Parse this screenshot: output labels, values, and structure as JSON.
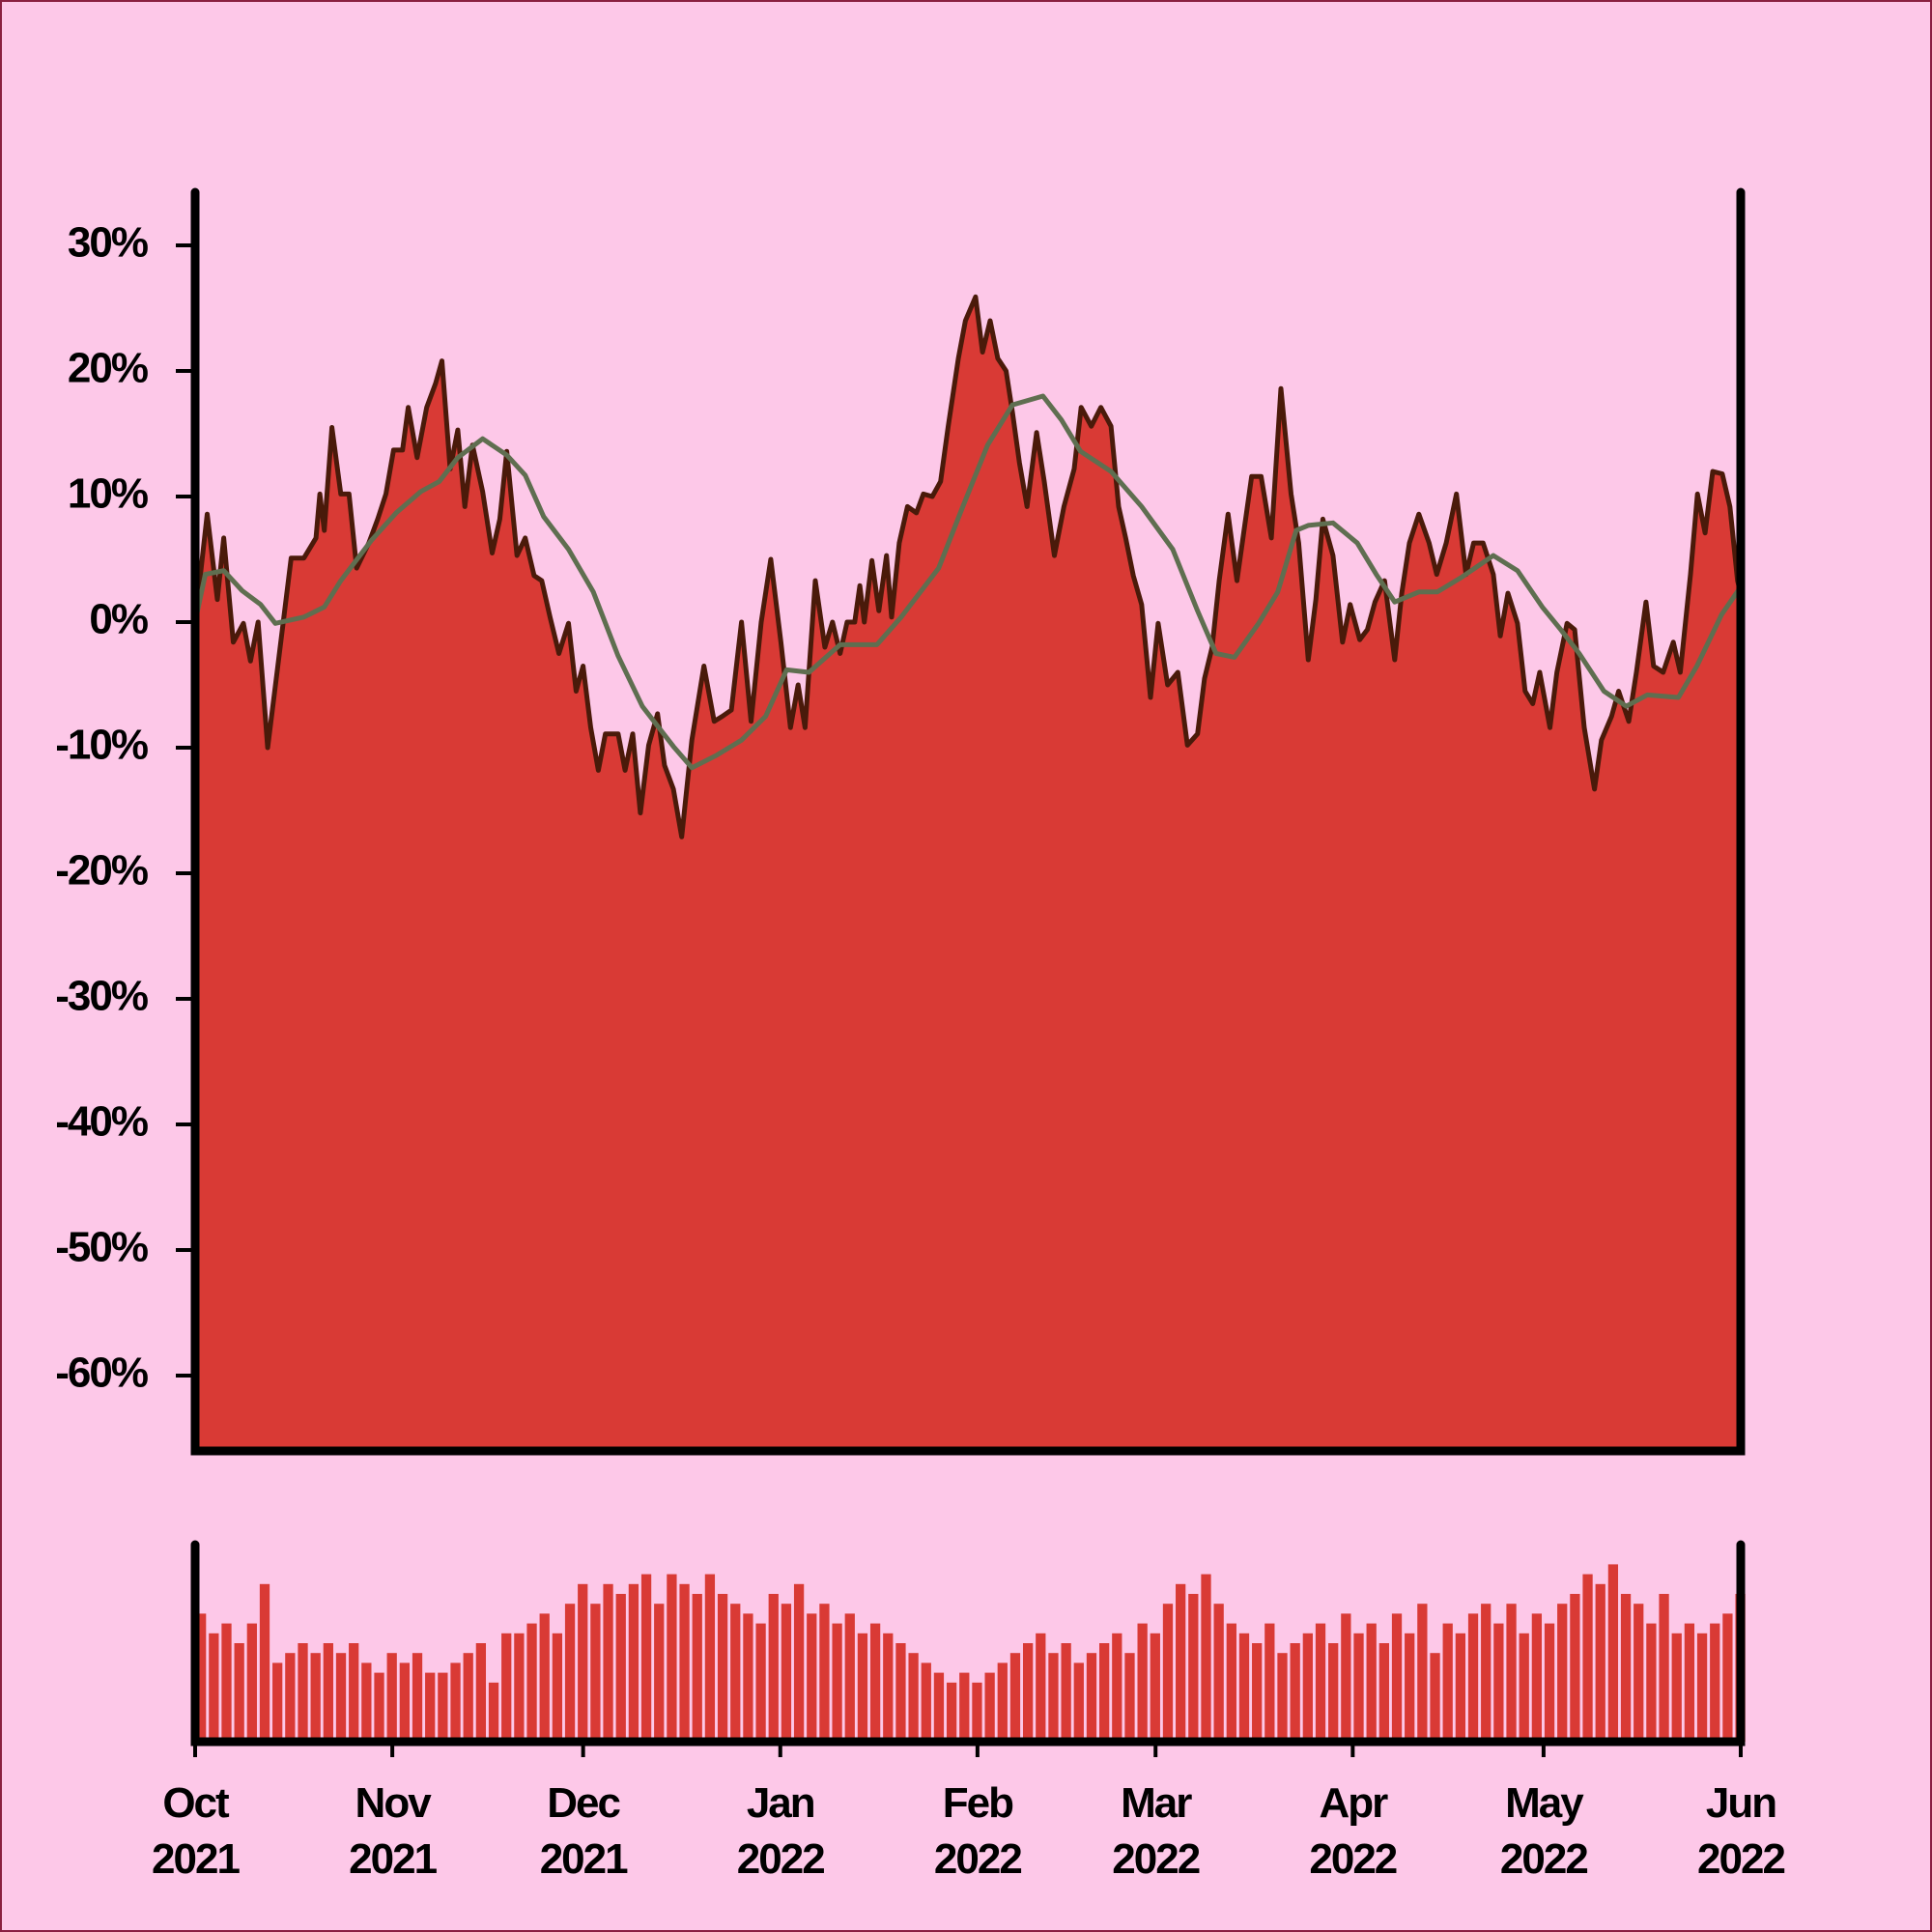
{
  "chart_data": [
    {
      "type": "area",
      "xlim": [
        0,
        243
      ],
      "ylim": [
        -66,
        34
      ],
      "yticks": [
        {
          "value": 30,
          "label": "30%"
        },
        {
          "value": 20,
          "label": "20%"
        },
        {
          "value": 10,
          "label": "10%"
        },
        {
          "value": 0,
          "label": "0%"
        },
        {
          "value": -10,
          "label": "-10%"
        },
        {
          "value": -20,
          "label": "-20%"
        },
        {
          "value": -30,
          "label": "-30%"
        },
        {
          "value": -40,
          "label": "-40%"
        },
        {
          "value": -50,
          "label": "-50%"
        },
        {
          "value": -60,
          "label": "-60%"
        }
      ],
      "series": [
        {
          "type": "area",
          "color": "#d93a35",
          "edge_color": "#4a1a0a",
          "x": [
            0,
            1.9,
            3.5,
            4.5,
            6.0,
            7.6,
            8.7,
            9.9,
            11.4,
            13.0,
            15.1,
            17.1,
            19.0,
            19.6,
            20.3,
            21.5,
            22.9,
            24.2,
            25.4,
            27.3,
            28.7,
            30.0,
            31.2,
            32.6,
            33.5,
            34.9,
            36.4,
            37.8,
            38.8,
            40.1,
            41.3,
            42.4,
            43.6,
            45.2,
            46.7,
            47.9,
            49.0,
            50.6,
            51.9,
            53.3,
            54.5,
            55.8,
            57.2,
            58.7,
            59.9,
            61.0,
            62.2,
            63.4,
            64.5,
            66.5,
            67.6,
            68.8,
            70.0,
            71.3,
            72.7,
            73.8,
            75.2,
            76.5,
            78.1,
            80.0,
            81.6,
            82.9,
            84.3,
            85.9,
            87.4,
            89.0,
            90.5,
            92.1,
            93.6,
            94.8,
            95.9,
            97.5,
            99.0,
            100.2,
            101.4,
            102.5,
            103.7,
            104.5,
            105.2,
            106.4,
            107.5,
            108.7,
            109.5,
            110.7,
            112.0,
            113.4,
            114.5,
            115.9,
            117.2,
            118.4,
            120.0,
            121.1,
            122.7,
            123.8,
            125.0,
            126.2,
            127.5,
            128.5,
            129.6,
            130.8,
            132.3,
            133.5,
            135.1,
            136.6,
            138.2,
            139.3,
            140.9,
            142.4,
            144.0,
            145.2,
            146.3,
            147.5,
            148.8,
            150.2,
            151.4,
            152.9,
            154.5,
            156.0,
            157.6,
            158.7,
            159.9,
            161.0,
            162.4,
            163.8,
            164.9,
            166.1,
            167.6,
            169.2,
            170.7,
            172.3,
            173.5,
            175.0,
            176.2,
            177.3,
            178.9,
            180.4,
            181.6,
            183.1,
            184.3,
            185.5,
            187.0,
            188.6,
            189.7,
            190.9,
            192.4,
            194.0,
            195.2,
            196.7,
            198.3,
            199.8,
            201.0,
            202.5,
            204.1,
            205.2,
            206.4,
            207.9,
            209.1,
            210.3,
            211.4,
            213.0,
            214.1,
            215.7,
            216.9,
            218.4,
            220.0,
            221.1,
            222.7,
            223.8,
            225.4,
            226.6,
            228.1,
            229.3,
            230.8,
            232.4,
            233.5,
            235.1,
            236.2,
            237.4,
            238.6,
            240.1,
            241.3,
            242.5,
            243.0
          ],
          "values": [
            0,
            8.6,
            1.8,
            6.7,
            -1.6,
            -0.1,
            -3.1,
            0,
            -10.0,
            -3.5,
            5.1,
            5.1,
            6.7,
            10.2,
            7.3,
            15.5,
            10.2,
            10.2,
            4.3,
            6.3,
            8.2,
            10.2,
            13.7,
            13.7,
            17.1,
            13.1,
            17.1,
            19.0,
            20.8,
            12.2,
            15.3,
            9.2,
            14.1,
            10.4,
            5.5,
            8.2,
            13.6,
            5.3,
            6.7,
            3.7,
            3.3,
            0.4,
            -2.5,
            -0.1,
            -5.5,
            -3.5,
            -8.4,
            -11.8,
            -8.9,
            -8.9,
            -11.8,
            -8.9,
            -15.2,
            -9.8,
            -7.3,
            -11.4,
            -13.3,
            -17.1,
            -9.4,
            -3.5,
            -7.9,
            -7.5,
            -7.0,
            0,
            -7.9,
            0,
            5.0,
            -1.6,
            -8.4,
            -5.0,
            -8.4,
            3.3,
            -2.0,
            0,
            -2.5,
            0,
            0,
            2.9,
            0,
            4.9,
            0.9,
            5.3,
            0.4,
            6.3,
            9.2,
            8.7,
            10.2,
            10.0,
            11.2,
            15.6,
            21.0,
            24.0,
            25.9,
            21.5,
            24.0,
            21.0,
            20.0,
            16.7,
            12.7,
            9.2,
            15.1,
            11.2,
            5.3,
            9.2,
            12.2,
            17.1,
            15.6,
            17.1,
            15.6,
            9.2,
            6.7,
            3.7,
            1.4,
            -6.0,
            -0.1,
            -5.0,
            -4.0,
            -9.8,
            -8.9,
            -4.5,
            -2.0,
            3.3,
            8.6,
            3.3,
            7.3,
            11.6,
            11.6,
            6.7,
            18.6,
            10.2,
            6.3,
            -3.0,
            1.8,
            8.2,
            5.3,
            -1.6,
            1.4,
            -1.4,
            -0.6,
            1.6,
            3.3,
            -3.0,
            2.3,
            6.3,
            8.6,
            6.3,
            3.8,
            6.3,
            10.2,
            3.8,
            6.3,
            6.3,
            3.8,
            -1.1,
            2.3,
            -0.1,
            -5.5,
            -6.5,
            -4.0,
            -8.4,
            -4.0,
            -0.1,
            -0.6,
            -8.4,
            -13.3,
            -9.4,
            -7.5,
            -5.5,
            -7.9,
            -4.0,
            1.6,
            -3.5,
            -4.0,
            -1.6,
            -4.0,
            3.8,
            10.2,
            7.1,
            12.0,
            11.8,
            9.2,
            3.3,
            2.3
          ]
        },
        {
          "type": "line",
          "color": "#5f6e50",
          "x": [
            0,
            1.6,
            4.5,
            7.4,
            10.3,
            12.6,
            17.1,
            20.3,
            22.9,
            27.7,
            31.6,
            35.5,
            38.4,
            41.3,
            45.2,
            49.0,
            51.9,
            54.8,
            58.7,
            62.6,
            66.5,
            70.3,
            75.2,
            78.1,
            82.0,
            85.9,
            89.7,
            93.0,
            96.5,
            101.4,
            107.2,
            111.0,
            116.9,
            120.7,
            124.6,
            128.5,
            133.3,
            136.2,
            139.2,
            144.0,
            148.8,
            153.7,
            157.6,
            160.5,
            163.4,
            167.2,
            170.2,
            173.1,
            175.0,
            178.9,
            182.7,
            185.7,
            188.6,
            192.4,
            195.3,
            199.2,
            204.1,
            207.9,
            211.8,
            214.7,
            217.6,
            221.5,
            225.0,
            228.3,
            233.2,
            236.1,
            240.0,
            243.0
          ],
          "values": [
            0,
            3.8,
            4.1,
            2.5,
            1.4,
            -0.1,
            0.4,
            1.2,
            3.3,
            6.5,
            8.7,
            10.4,
            11.2,
            13.1,
            14.6,
            13.3,
            11.7,
            8.4,
            5.8,
            2.4,
            -2.7,
            -6.7,
            -9.9,
            -11.6,
            -10.6,
            -9.4,
            -7.5,
            -3.8,
            -4.0,
            -1.8,
            -1.8,
            0.4,
            4.3,
            9.2,
            14.1,
            17.3,
            18.0,
            16.1,
            13.6,
            12.0,
            9.2,
            5.8,
            0.9,
            -2.5,
            -2.8,
            -0.1,
            2.4,
            7.3,
            7.7,
            7.9,
            6.3,
            3.8,
            1.6,
            2.4,
            2.4,
            3.6,
            5.3,
            4.1,
            1.2,
            -0.6,
            -2.5,
            -5.5,
            -6.7,
            -5.8,
            -6.0,
            -3.5,
            0.6,
            2.8
          ]
        }
      ]
    },
    {
      "type": "bar",
      "color": "#d93a35",
      "xlim": [
        0,
        243
      ],
      "ylim": [
        0,
        100
      ],
      "xticks": [
        {
          "value": 0,
          "label": "Oct\n2021"
        },
        {
          "value": 31,
          "label": "Nov\n2021"
        },
        {
          "value": 61,
          "label": "Dec\n2021"
        },
        {
          "value": 92,
          "label": "Jan\n2022"
        },
        {
          "value": 123,
          "label": "Feb\n2022"
        },
        {
          "value": 151,
          "label": "Mar\n2022"
        },
        {
          "value": 182,
          "label": "Apr\n2022"
        },
        {
          "value": 212,
          "label": "May\n2022"
        },
        {
          "value": 243,
          "label": "Jun\n2022"
        }
      ],
      "x": [
        0,
        2,
        4,
        6,
        8,
        10,
        12,
        14,
        16,
        18,
        20,
        22,
        24,
        26,
        28,
        30,
        32,
        34,
        36,
        38,
        40,
        42,
        44,
        46,
        48,
        50,
        52,
        54,
        56,
        58,
        60,
        62,
        64,
        66,
        68,
        70,
        72,
        74,
        76,
        78,
        80,
        82,
        84,
        86,
        88,
        90,
        92,
        94,
        96,
        98,
        100,
        102,
        104,
        106,
        108,
        110,
        112,
        114,
        116,
        118,
        120,
        122,
        124,
        126,
        128,
        130,
        132,
        134,
        136,
        138,
        140,
        142,
        144,
        146,
        148,
        150,
        152,
        154,
        156,
        158,
        160,
        162,
        164,
        166,
        168,
        170,
        172,
        174,
        176,
        178,
        180,
        182,
        184,
        186,
        188,
        190,
        192,
        194,
        196,
        198,
        200,
        202,
        204,
        206,
        208,
        210,
        212,
        214,
        216,
        218,
        220,
        222,
        224,
        226,
        228,
        230,
        232,
        234,
        236,
        238,
        240,
        242
      ],
      "values": [
        65,
        55,
        60,
        50,
        60,
        80,
        40,
        45,
        50,
        45,
        50,
        45,
        50,
        40,
        35,
        45,
        40,
        45,
        35,
        35,
        40,
        45,
        50,
        30,
        55,
        55,
        60,
        65,
        55,
        70,
        80,
        70,
        80,
        75,
        80,
        85,
        70,
        85,
        80,
        75,
        85,
        75,
        70,
        65,
        60,
        75,
        70,
        80,
        65,
        70,
        60,
        65,
        55,
        60,
        55,
        50,
        45,
        40,
        35,
        30,
        35,
        30,
        35,
        40,
        45,
        50,
        55,
        45,
        50,
        40,
        45,
        50,
        55,
        45,
        60,
        55,
        70,
        80,
        75,
        85,
        70,
        60,
        55,
        50,
        60,
        45,
        50,
        55,
        60,
        50,
        65,
        55,
        60,
        50,
        65,
        55,
        70,
        45,
        60,
        55,
        65,
        70,
        60,
        70,
        55,
        65,
        60,
        70,
        75,
        85,
        80,
        90,
        75,
        70,
        60,
        75,
        55,
        60,
        55,
        60,
        65,
        75
      ]
    }
  ]
}
